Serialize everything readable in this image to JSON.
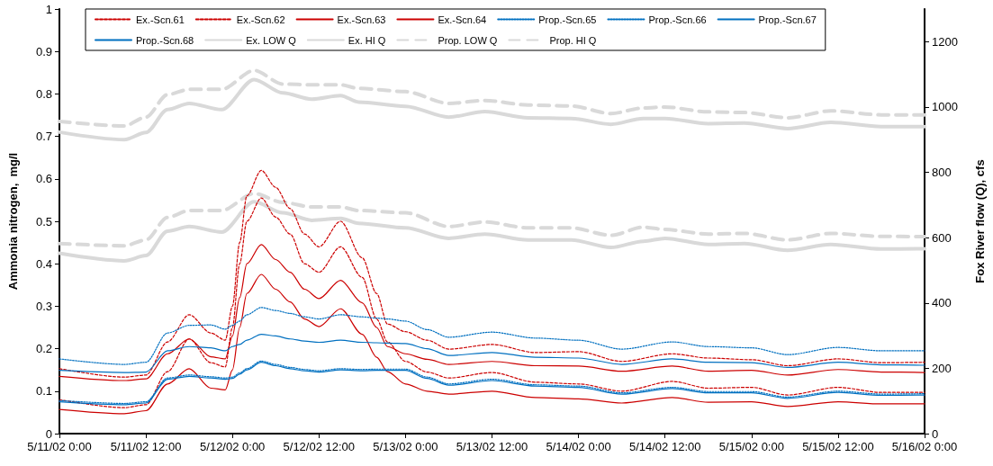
{
  "chart_data": {
    "type": "line",
    "ylabel": "Ammonia nitrogen,  mg/l",
    "y2label": "Fox River flow (Q), cfs",
    "x": [
      "--05-11T00:00",
      "--05-11T09:00",
      "--05-11T12:00",
      "--05-11T15:00",
      "--05-11T18:00",
      "--05-11T21:00",
      "--05-11T23:00",
      "--05-12T00:00",
      "--05-12T01:00",
      "--05-12T02:00",
      "--05-12T04:00",
      "--05-12T06:00",
      "--05-12T08:00",
      "--05-12T10:00",
      "--05-12T12:00",
      "--05-12T15:00",
      "--05-12T18:00",
      "--05-12T20:00",
      "--05-12T21:30",
      "--05-13T00:00",
      "--05-13T03:00",
      "--05-13T06:00",
      "--05-13T12:00",
      "--05-13T18:00",
      "--05-14T00:00",
      "--05-14T06:00",
      "--05-14T13:00",
      "--05-14T18:00",
      "--05-15T00:00",
      "--05-15T05:00",
      "--05-15T12:00",
      "--05-15T18:00",
      "--05-16T00:00"
    ],
    "xlim": [
      "--05-11T00:00",
      "--05-16T00:00"
    ],
    "xticks": [
      {
        "value": "--05-11T00:00",
        "label": "5/11/02 0:00"
      },
      {
        "value": "--05-11T12:00",
        "label": "5/11/02 12:00"
      },
      {
        "value": "--05-12T00:00",
        "label": "5/12/02 0:00"
      },
      {
        "value": "--05-12T12:00",
        "label": "5/12/02 12:00"
      },
      {
        "value": "--05-13T00:00",
        "label": "5/13/02 0:00"
      },
      {
        "value": "--05-13T12:00",
        "label": "5/13/02 12:00"
      },
      {
        "value": "--05-14T00:00",
        "label": "5/14/02 0:00"
      },
      {
        "value": "--05-14T12:00",
        "label": "5/14/02 12:00"
      },
      {
        "value": "--05-15T00:00",
        "label": "5/15/02 0:00"
      },
      {
        "value": "--05-15T12:00",
        "label": "5/15/02 12:00"
      },
      {
        "value": "--05-16T00:00",
        "label": "5/16/02 0:00"
      }
    ],
    "ylim": [
      0,
      1
    ],
    "yticks": [
      0,
      0.1,
      0.2,
      0.3,
      0.4,
      0.5,
      0.6,
      0.7,
      0.8,
      0.9,
      1
    ],
    "y2lim": [
      0,
      1300
    ],
    "y2ticks": [
      0,
      200,
      400,
      600,
      800,
      1000,
      1200
    ],
    "grid": false,
    "legend": "top",
    "marker": "none",
    "series": [
      {
        "name": "Ex.-Scn.61",
        "color": "#cc0000",
        "line_style": "dashed",
        "values": [
          0.153,
          0.133,
          0.138,
          0.216,
          0.28,
          0.237,
          0.22,
          0.3,
          0.45,
          0.56,
          0.62,
          0.58,
          0.53,
          0.47,
          0.44,
          0.5,
          0.414,
          0.33,
          0.258,
          0.24,
          0.22,
          0.199,
          0.21,
          0.191,
          0.193,
          0.17,
          0.188,
          0.178,
          0.174,
          0.16,
          0.176,
          0.167,
          0.168
        ]
      },
      {
        "name": "Ex.-Scn.62",
        "color": "#cc0000",
        "line_style": "dashed",
        "values": [
          0.08,
          0.061,
          0.068,
          0.146,
          0.223,
          0.167,
          0.157,
          0.25,
          0.4,
          0.5,
          0.555,
          0.51,
          0.47,
          0.4,
          0.38,
          0.44,
          0.368,
          0.27,
          0.216,
          0.17,
          0.145,
          0.131,
          0.144,
          0.121,
          0.117,
          0.1,
          0.123,
          0.107,
          0.109,
          0.091,
          0.109,
          0.097,
          0.097
        ]
      },
      {
        "name": "Ex.-Scn.63",
        "color": "#cc0000",
        "line_style": "solid",
        "values": [
          0.135,
          0.125,
          0.129,
          0.188,
          0.223,
          0.181,
          0.176,
          0.23,
          0.32,
          0.4,
          0.445,
          0.41,
          0.38,
          0.34,
          0.318,
          0.361,
          0.308,
          0.25,
          0.205,
          0.188,
          0.175,
          0.163,
          0.17,
          0.16,
          0.159,
          0.147,
          0.159,
          0.147,
          0.149,
          0.138,
          0.151,
          0.145,
          0.144
        ]
      },
      {
        "name": "Ex.-Scn.64",
        "color": "#cc0000",
        "line_style": "solid",
        "values": [
          0.057,
          0.047,
          0.054,
          0.117,
          0.153,
          0.107,
          0.103,
          0.15,
          0.25,
          0.33,
          0.375,
          0.34,
          0.31,
          0.27,
          0.252,
          0.294,
          0.234,
          0.18,
          0.146,
          0.117,
          0.1,
          0.093,
          0.1,
          0.085,
          0.082,
          0.072,
          0.085,
          0.074,
          0.075,
          0.064,
          0.075,
          0.07,
          0.07
        ]
      },
      {
        "name": "Prop.-Scn.65",
        "color": "#0070c0",
        "line_style": "dotted",
        "values": [
          0.176,
          0.163,
          0.168,
          0.237,
          0.255,
          0.256,
          0.246,
          0.255,
          0.265,
          0.28,
          0.297,
          0.29,
          0.283,
          0.275,
          0.27,
          0.28,
          0.275,
          0.272,
          0.27,
          0.265,
          0.245,
          0.227,
          0.239,
          0.225,
          0.22,
          0.199,
          0.216,
          0.205,
          0.202,
          0.186,
          0.203,
          0.195,
          0.195
        ]
      },
      {
        "name": "Prop.-Scn.66",
        "color": "#0070c0",
        "line_style": "dotted",
        "values": [
          0.078,
          0.071,
          0.075,
          0.131,
          0.138,
          0.134,
          0.131,
          0.133,
          0.143,
          0.153,
          0.171,
          0.163,
          0.156,
          0.151,
          0.148,
          0.153,
          0.151,
          0.152,
          0.152,
          0.152,
          0.133,
          0.117,
          0.128,
          0.115,
          0.112,
          0.096,
          0.109,
          0.099,
          0.099,
          0.086,
          0.1,
          0.093,
          0.094
        ]
      },
      {
        "name": "Prop.-Scn.67",
        "color": "#0070c0",
        "line_style": "solid",
        "values": [
          0.149,
          0.144,
          0.145,
          0.195,
          0.205,
          0.202,
          0.195,
          0.205,
          0.21,
          0.22,
          0.234,
          0.23,
          0.223,
          0.218,
          0.215,
          0.22,
          0.215,
          0.214,
          0.213,
          0.212,
          0.2,
          0.184,
          0.191,
          0.18,
          0.178,
          0.163,
          0.176,
          0.168,
          0.167,
          0.156,
          0.168,
          0.162,
          0.161
        ]
      },
      {
        "name": "Prop.-Scn.68",
        "color": "#0070c0",
        "line_style": "solid",
        "values": [
          0.075,
          0.068,
          0.072,
          0.128,
          0.135,
          0.131,
          0.128,
          0.13,
          0.14,
          0.15,
          0.168,
          0.16,
          0.153,
          0.148,
          0.145,
          0.15,
          0.148,
          0.149,
          0.149,
          0.149,
          0.13,
          0.114,
          0.125,
          0.112,
          0.109,
          0.093,
          0.106,
          0.096,
          0.096,
          0.083,
          0.097,
          0.09,
          0.091
        ]
      },
      {
        "name": "Ex. LOW Q",
        "color": "#d9d9d9",
        "line_style": "solid",
        "axis": "y2",
        "x": [
          "--05-11T00:00",
          "--05-11T09:00",
          "--05-11T12:00",
          "--05-11T15:00",
          "--05-11T18:00",
          "--05-11T22:30",
          "--05-12T03:00",
          "--05-12T07:00",
          "--05-12T11:00",
          "--05-12T15:00",
          "--05-12T17:30",
          "--05-13T00:00",
          "--05-13T06:00",
          "--05-13T11:00",
          "--05-13T17:00",
          "--05-13T23:00",
          "--05-14T04:30",
          "--05-14T09:00",
          "--05-14T12:00",
          "--05-14T18:00",
          "--05-14T23:00",
          "--05-15T05:00",
          "--05-15T11:00",
          "--05-15T18:00",
          "--05-16T00:00"
        ],
        "values": [
          552,
          529,
          545,
          620,
          634,
          617,
          710,
          676,
          653,
          659,
          644,
          630,
          598,
          611,
          593,
          593,
          570,
          589,
          598,
          579,
          582,
          561,
          579,
          565,
          566
        ]
      },
      {
        "name": "Ex. HI Q",
        "color": "#d9d9d9",
        "line_style": "solid",
        "axis": "y2",
        "x": [
          "--05-11T00:00",
          "--05-11T09:00",
          "--05-11T12:00",
          "--05-11T15:00",
          "--05-11T18:00",
          "--05-11T22:30",
          "--05-12T03:00",
          "--05-12T07:00",
          "--05-12T11:00",
          "--05-12T15:00",
          "--05-12T17:30",
          "--05-13T00:00",
          "--05-13T06:00",
          "--05-13T11:00",
          "--05-13T17:00",
          "--05-13T23:00",
          "--05-14T04:30",
          "--05-14T09:00",
          "--05-14T12:00",
          "--05-14T18:00",
          "--05-14T23:00",
          "--05-15T05:00",
          "--05-15T11:00",
          "--05-15T18:00",
          "--05-16T00:00"
        ],
        "values": [
          923,
          900,
          922,
          992,
          1011,
          992,
          1084,
          1043,
          1024,
          1035,
          1015,
          1002,
          969,
          986,
          967,
          965,
          947,
          965,
          965,
          949,
          951,
          934,
          953,
          940,
          940
        ]
      },
      {
        "name": "Prop. LOW Q",
        "color": "#d9d9d9",
        "line_style": "dashed",
        "axis": "y2",
        "x": [
          "--05-11T00:00",
          "--05-11T09:00",
          "--05-11T12:00",
          "--05-11T15:00",
          "--05-11T18:00",
          "--05-11T22:30",
          "--05-12T03:00",
          "--05-12T07:00",
          "--05-12T11:00",
          "--05-12T15:00",
          "--05-12T17:30",
          "--05-13T00:00",
          "--05-13T06:00",
          "--05-13T11:00",
          "--05-13T17:00",
          "--05-13T23:00",
          "--05-14T04:30",
          "--05-14T09:00",
          "--05-14T12:00",
          "--05-14T18:00",
          "--05-14T23:00",
          "--05-15T05:00",
          "--05-15T11:00",
          "--05-15T18:00",
          "--05-16T00:00"
        ],
        "values": [
          582,
          575,
          593,
          662,
          683,
          683,
          735,
          708,
          694,
          694,
          683,
          676,
          634,
          648,
          630,
          630,
          607,
          632,
          625,
          611,
          613,
          593,
          613,
          604,
          603
        ]
      },
      {
        "name": "Prop. HI Q",
        "color": "#d9d9d9",
        "line_style": "dashed",
        "axis": "y2",
        "x": [
          "--05-11T00:00",
          "--05-11T09:00",
          "--05-11T12:00",
          "--05-11T15:00",
          "--05-11T18:00",
          "--05-11T22:30",
          "--05-12T03:00",
          "--05-12T07:00",
          "--05-12T11:00",
          "--05-12T15:00",
          "--05-12T17:30",
          "--05-13T00:00",
          "--05-13T06:00",
          "--05-13T11:00",
          "--05-13T17:00",
          "--05-13T23:00",
          "--05-14T04:30",
          "--05-14T09:00",
          "--05-14T12:00",
          "--05-14T18:00",
          "--05-14T23:00",
          "--05-15T05:00",
          "--05-15T11:00",
          "--05-15T18:00",
          "--05-16T00:00"
        ],
        "values": [
          956,
          942,
          969,
          1038,
          1054,
          1054,
          1112,
          1070,
          1068,
          1068,
          1057,
          1047,
          1011,
          1020,
          1006,
          1003,
          980,
          997,
          1000,
          985,
          983,
          967,
          988,
          976,
          976
        ]
      }
    ]
  }
}
